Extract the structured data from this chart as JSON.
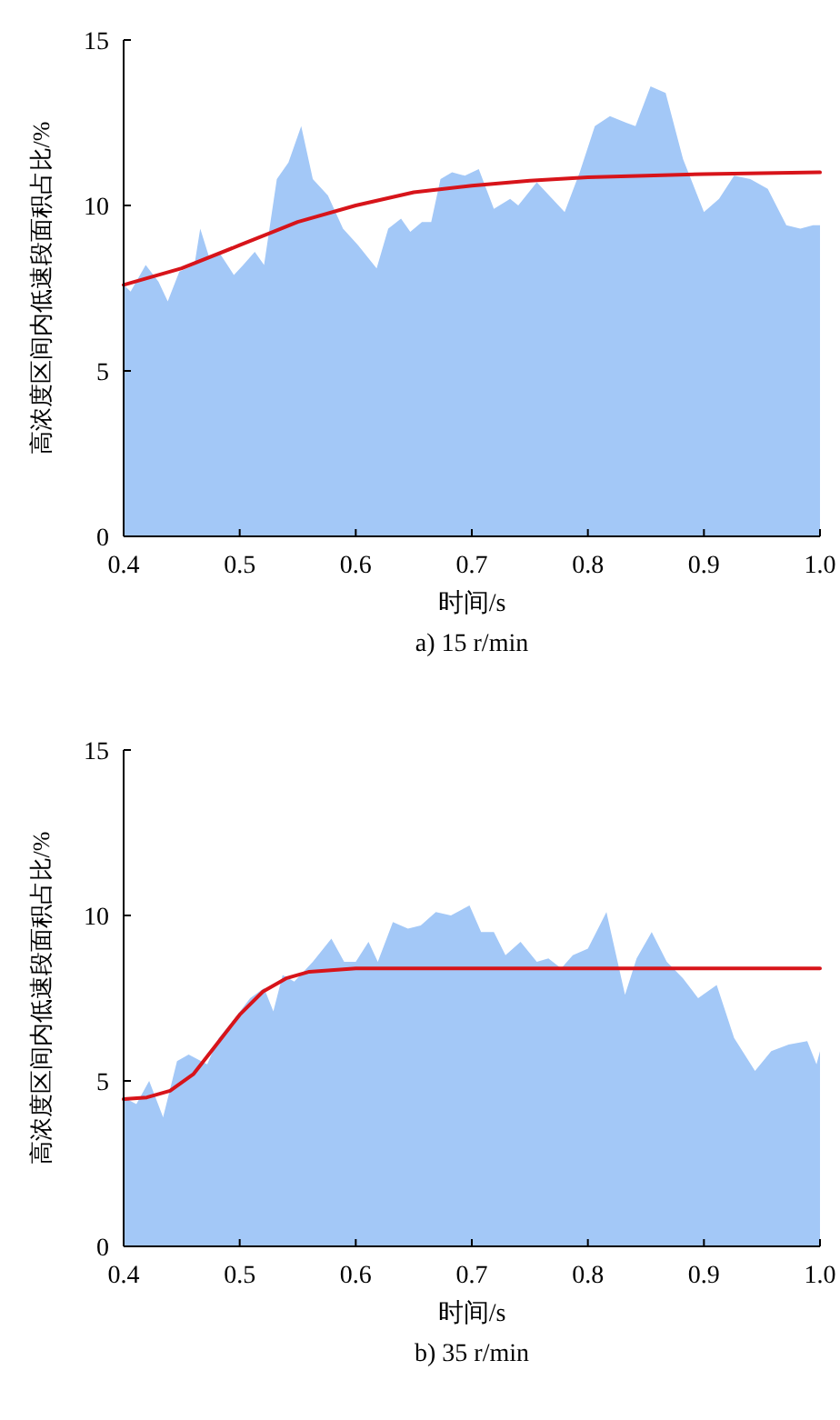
{
  "chart_data": [
    {
      "type": "area",
      "title": "a) 15 r/min",
      "xlabel": "时间/s",
      "ylabel": "高浓度区间内低速段面积占比/%",
      "xlim": [
        0.4,
        1.0
      ],
      "ylim": [
        0,
        15
      ],
      "xticks": [
        {
          "value": 0.4,
          "label": "0.4"
        },
        {
          "value": 0.5,
          "label": "0.5"
        },
        {
          "value": 0.6,
          "label": "0.6"
        },
        {
          "value": 0.7,
          "label": "0.7"
        },
        {
          "value": 0.8,
          "label": "0.8"
        },
        {
          "value": 0.9,
          "label": "0.9"
        },
        {
          "value": 1.0,
          "label": "1.0"
        }
      ],
      "yticks": [
        0,
        5,
        10,
        15
      ],
      "series": [
        {
          "color": "#a3c8f7",
          "x": [
            0.4,
            0.406,
            0.419,
            0.43,
            0.438,
            0.448,
            0.461,
            0.466,
            0.474,
            0.482,
            0.495,
            0.503,
            0.513,
            0.521,
            0.532,
            0.542,
            0.553,
            0.563,
            0.576,
            0.589,
            0.602,
            0.618,
            0.628,
            0.639,
            0.647,
            0.657,
            0.665,
            0.673,
            0.683,
            0.694,
            0.706,
            0.719,
            0.733,
            0.74,
            0.756,
            0.78,
            0.793,
            0.806,
            0.819,
            0.833,
            0.841,
            0.854,
            0.867,
            0.882,
            0.9,
            0.913,
            0.926,
            0.94,
            0.955,
            0.971,
            0.983,
            0.994,
            1.0
          ],
          "values": [
            7.6,
            7.4,
            8.2,
            7.7,
            7.1,
            8.0,
            8.2,
            9.3,
            8.4,
            8.6,
            7.9,
            8.2,
            8.6,
            8.2,
            10.8,
            11.3,
            12.4,
            10.8,
            10.3,
            9.3,
            8.8,
            8.1,
            9.3,
            9.6,
            9.2,
            9.5,
            9.5,
            10.8,
            11.0,
            10.9,
            11.1,
            9.9,
            10.2,
            10.0,
            10.7,
            9.8,
            11.0,
            12.4,
            12.7,
            12.5,
            12.4,
            13.6,
            13.4,
            11.4,
            9.8,
            10.2,
            10.9,
            10.8,
            10.5,
            9.4,
            9.3,
            9.4,
            9.4
          ]
        },
        {
          "type": "line",
          "color": "#d7141a",
          "x": [
            0.4,
            0.45,
            0.5,
            0.55,
            0.6,
            0.65,
            0.7,
            0.75,
            0.8,
            0.85,
            0.9,
            1.0
          ],
          "values": [
            7.6,
            8.1,
            8.8,
            9.5,
            10.0,
            10.4,
            10.6,
            10.75,
            10.85,
            10.9,
            10.95,
            11.0
          ]
        }
      ]
    },
    {
      "type": "area",
      "title": "b) 35 r/min",
      "xlabel": "时间/s",
      "ylabel": "高浓度区间内低速段面积占比/%",
      "xlim": [
        0.4,
        1.0
      ],
      "ylim": [
        0,
        15
      ],
      "xticks": [
        {
          "value": 0.4,
          "label": "0.4"
        },
        {
          "value": 0.5,
          "label": "0.5"
        },
        {
          "value": 0.6,
          "label": "0.6"
        },
        {
          "value": 0.7,
          "label": "0.7"
        },
        {
          "value": 0.8,
          "label": "0.8"
        },
        {
          "value": 0.9,
          "label": "0.9"
        },
        {
          "value": 1.0,
          "label": "1.0"
        }
      ],
      "yticks": [
        0,
        5,
        10,
        15
      ],
      "series": [
        {
          "color": "#a3c8f7",
          "x": [
            0.4,
            0.411,
            0.422,
            0.434,
            0.446,
            0.456,
            0.472,
            0.482,
            0.496,
            0.509,
            0.521,
            0.529,
            0.537,
            0.547,
            0.563,
            0.579,
            0.59,
            0.6,
            0.611,
            0.619,
            0.632,
            0.645,
            0.656,
            0.669,
            0.682,
            0.698,
            0.708,
            0.719,
            0.729,
            0.742,
            0.756,
            0.766,
            0.777,
            0.787,
            0.8,
            0.816,
            0.832,
            0.842,
            0.855,
            0.868,
            0.882,
            0.895,
            0.911,
            0.926,
            0.944,
            0.958,
            0.973,
            0.989,
            0.997,
            1.0
          ],
          "values": [
            4.5,
            4.3,
            5.0,
            3.9,
            5.6,
            5.8,
            5.5,
            6.3,
            6.9,
            7.5,
            7.8,
            7.1,
            8.2,
            8.0,
            8.6,
            9.3,
            8.6,
            8.6,
            9.2,
            8.6,
            9.8,
            9.6,
            9.7,
            10.1,
            10.0,
            10.3,
            9.5,
            9.5,
            8.8,
            9.2,
            8.6,
            8.7,
            8.4,
            8.8,
            9.0,
            10.1,
            7.6,
            8.7,
            9.5,
            8.6,
            8.1,
            7.5,
            7.9,
            6.3,
            5.3,
            5.9,
            6.1,
            6.2,
            5.5,
            5.9
          ]
        },
        {
          "type": "line",
          "color": "#d7141a",
          "x": [
            0.4,
            0.42,
            0.44,
            0.46,
            0.48,
            0.5,
            0.52,
            0.54,
            0.56,
            0.6,
            0.7,
            0.8,
            0.9,
            1.0
          ],
          "values": [
            4.45,
            4.5,
            4.7,
            5.2,
            6.1,
            7.0,
            7.7,
            8.1,
            8.3,
            8.4,
            8.4,
            8.4,
            8.4,
            8.4
          ]
        }
      ]
    }
  ]
}
